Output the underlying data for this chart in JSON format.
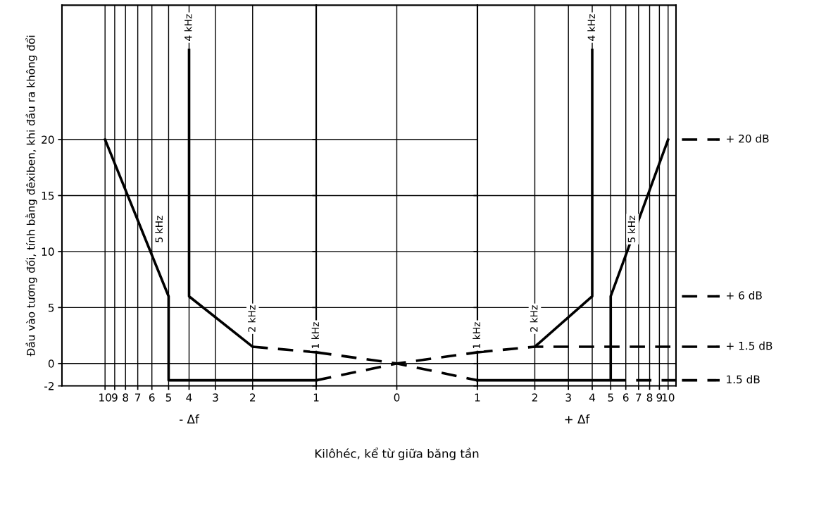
{
  "chart_data": [
    {
      "type": "line",
      "ylabel": "Đầu vào tương đối, tính bằng đêxiben, khi đầu ra không đổi",
      "log": "x",
      "grid": true,
      "marker": "none",
      "xlim": [
        16,
        1
      ],
      "ylim": [
        -2,
        32
      ],
      "xticks": [
        10,
        9,
        8,
        7,
        6,
        5,
        4,
        3,
        2
      ],
      "yticks": [
        -2,
        0,
        5,
        10,
        15,
        20
      ],
      "series": [
        {
          "color": "#000000",
          "line_style": "solid",
          "x": [
            10,
            5,
            5,
            1
          ],
          "values": [
            20,
            6,
            -1.5,
            -1.5
          ]
        },
        {
          "color": "#000000",
          "line_style": "solid",
          "x": [
            4,
            4,
            2
          ],
          "values": [
            28,
            6,
            1.5
          ]
        },
        {
          "color": "#000000",
          "line_style": "dashed",
          "x": [
            2,
            1
          ],
          "values": [
            1.5,
            1
          ]
        }
      ],
      "annotations": [
        {
          "text": "4 kHz",
          "x": 4,
          "y": 30
        },
        {
          "text": "5 kHz",
          "x": 5.5,
          "y": 12
        },
        {
          "text": "2 kHz",
          "x": 2,
          "y": 4
        },
        "- Δf"
      ]
    },
    {
      "type": "line",
      "xlabel": "Kilôhéc, kể từ giữa băng tần",
      "grid": true,
      "marker": "none",
      "tick_labels": "x",
      "xlim": [
        -1,
        1
      ],
      "ylim": [
        -2,
        32
      ],
      "xticks": [
        {
          "value": -1,
          "label": "1"
        },
        0,
        1
      ],
      "yticks": [
        -2,
        0,
        5,
        10,
        15,
        20
      ],
      "series": [
        {
          "color": "#000000",
          "line_style": "dashed",
          "x": [
            -1,
            0,
            1
          ],
          "values": [
            1,
            0,
            -1.5
          ]
        },
        {
          "color": "#000000",
          "line_style": "dashed",
          "x": [
            -1,
            0,
            1
          ],
          "values": [
            -1.5,
            0,
            1
          ]
        }
      ],
      "annotations": [
        {
          "text": "1 kHz",
          "x": -1,
          "y": 2.5
        },
        {
          "text": "1 kHz",
          "x": 1,
          "y": 2.5
        }
      ]
    },
    {
      "type": "line",
      "log": "x",
      "grid": true,
      "marker": "none",
      "tick_labels": "x",
      "xlim": [
        1,
        11
      ],
      "ylim": [
        -2,
        32
      ],
      "xticks": [
        2,
        3,
        4,
        5,
        6,
        7,
        8,
        9,
        10
      ],
      "yticks": [
        -2,
        0,
        5,
        10,
        15
      ],
      "series": [
        {
          "color": "#000000",
          "line_style": "solid",
          "x": [
            1,
            5,
            5,
            10
          ],
          "values": [
            -1.5,
            -1.5,
            6,
            20
          ]
        },
        {
          "color": "#000000",
          "line_style": "dashed",
          "x": [
            1,
            2,
            11
          ],
          "values": [
            1,
            1.5,
            1.5
          ]
        },
        {
          "color": "#000000",
          "line_style": "solid",
          "x": [
            2,
            4,
            4
          ],
          "values": [
            1.5,
            6,
            28
          ]
        },
        {
          "color": "#000000",
          "line_style": "dashed",
          "x": [
            5,
            11
          ],
          "values": [
            -1.5,
            -1.5
          ]
        }
      ],
      "ref_lines": [
        {
          "axis": "y",
          "value": 20,
          "label": "+ 20 dB",
          "line_style": "dashed",
          "color": "#000000"
        },
        {
          "axis": "y",
          "value": 6,
          "label": "+ 6 dB",
          "line_style": "dashed",
          "color": "#000000"
        },
        {
          "axis": "y",
          "value": 1.5,
          "label": "+ 1.5 dB",
          "line_style": "dashed",
          "color": "#000000"
        },
        {
          "axis": "y",
          "value": -1.5,
          "label": "1.5 dB",
          "line_style": "dashed",
          "color": "#000000"
        }
      ],
      "annotations": [
        {
          "text": "2 kHz",
          "x": 2,
          "y": 4
        },
        {
          "text": "4 kHz",
          "x": 4,
          "y": 30
        },
        {
          "text": "5 kHz",
          "x": 6.5,
          "y": 12
        },
        "+ Δf"
      ]
    }
  ]
}
